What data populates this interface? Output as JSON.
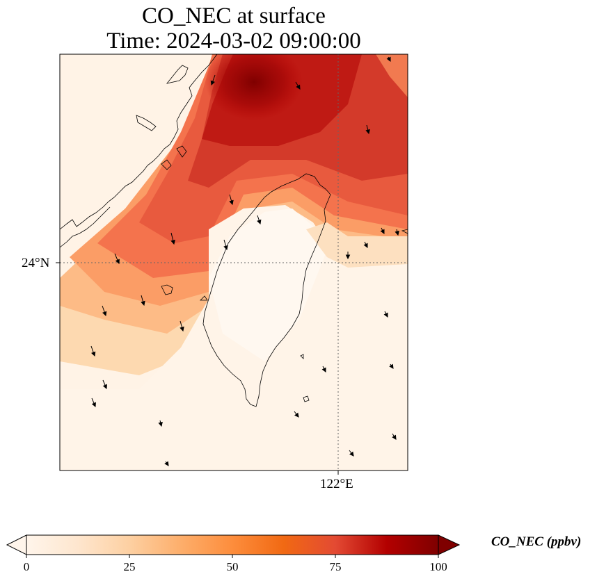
{
  "title_line1": "CO_NEC at surface",
  "title_line2": "Time: 2024-03-02 09:00:00",
  "axes": {
    "lat_tick_label": "24°N",
    "lon_tick_label": "122°E"
  },
  "colorbar": {
    "label": "CO_NEC (ppbv)",
    "ticks": [
      "0",
      "25",
      "50",
      "75",
      "100"
    ],
    "min": 0,
    "max": 100,
    "colormap": [
      "#fff5eb",
      "#fee6ce",
      "#fdd0a2",
      "#fdae6b",
      "#fd8d3c",
      "#f16913",
      "#e34a33",
      "#b30000",
      "#7f0000"
    ]
  },
  "colors": {
    "coastline": "#000000",
    "gridline": "#666666",
    "wind_arrow": "#000000"
  }
}
